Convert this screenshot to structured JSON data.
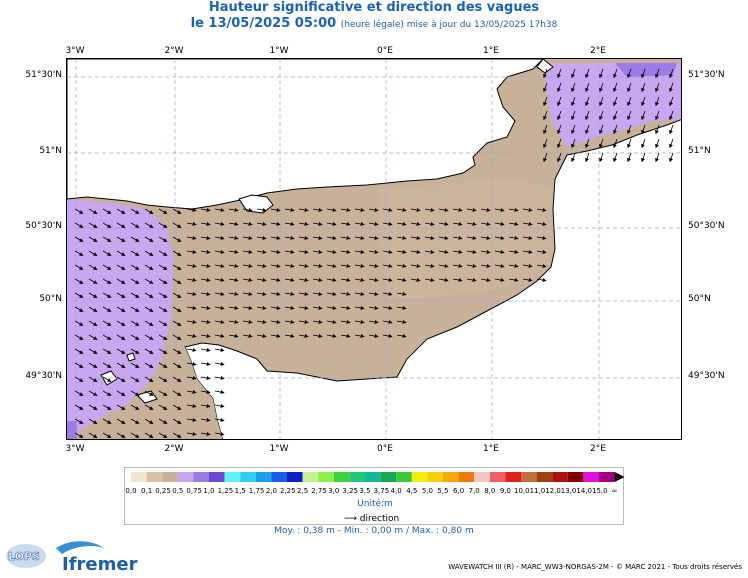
{
  "header": {
    "title": "Hauteur significative et direction des vagues",
    "date": "le 13/05/2025 05:00",
    "note": "(heure légale) mise à jour du 13/05/2025 17h38"
  },
  "axes": {
    "lon_labels": [
      "3°W",
      "2°W",
      "1°W",
      "0°E",
      "1°E",
      "2°E"
    ],
    "lat_labels": [
      "51°30'N",
      "51°N",
      "50°30'N",
      "50°N",
      "49°30'N"
    ]
  },
  "legend": {
    "labels": [
      "0,0",
      "0,1",
      "0,25",
      "0,5",
      "0,75",
      "1,0",
      "1,25",
      "1,5",
      "1,75",
      "2,0",
      "2,25",
      "2,5",
      "2,75",
      "3,0",
      "3,25",
      "3,5",
      "3,75",
      "4,0",
      "4,5",
      "5,0",
      "5,5",
      "6,0",
      "7,0",
      "8,0",
      "9,0",
      "10,0",
      "11,0",
      "12,0",
      "13,0",
      "14,0",
      "15,0",
      "∞"
    ],
    "colors": [
      "#f2e3d2",
      "#d9c0a6",
      "#c8b199",
      "#c8a6f0",
      "#9b7be6",
      "#6a4ad0",
      "#62f4f2",
      "#30ccf5",
      "#1aa0ef",
      "#1560e0",
      "#0b20c4",
      "#c8f090",
      "#8cf04a",
      "#3cd43c",
      "#20c878",
      "#12b89c",
      "#18a852",
      "#3cc83c",
      "#f2f00a",
      "#f4d20a",
      "#f4aa0a",
      "#f07a0a",
      "#f0c8c8",
      "#f06060",
      "#e02020",
      "#c07040",
      "#a04010",
      "#b01010",
      "#800000",
      "#e010e0",
      "#a00080"
    ],
    "unit": "Unité:m",
    "direction_label": "direction"
  },
  "stats": "Moy. : 0,38 m  -  Min. : 0,00 m / Max. : 0,80 m",
  "footer": "WAVEWATCH III (R) - MARC_WW3-NORGAS-2M - © MARC 2021 - Tous droits réservés",
  "logos": {
    "lops": "LOPS",
    "ifremer": "Ifremer"
  }
}
